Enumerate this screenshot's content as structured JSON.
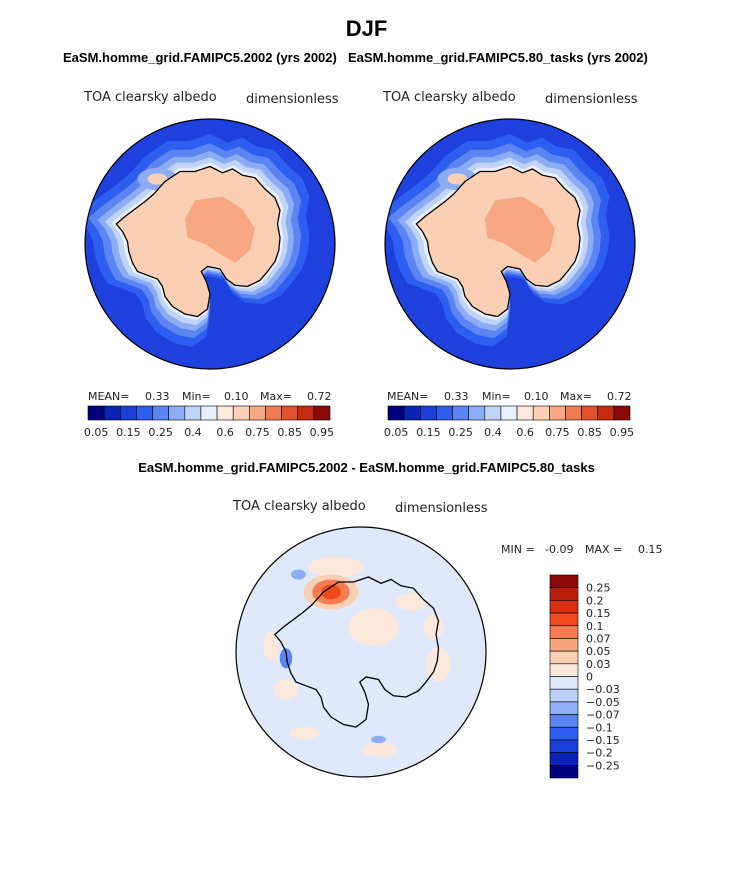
{
  "page": {
    "title": "DJF",
    "case_title": "EaSM.homme_grid.FAMIPC5.2002 (yrs 2002)",
    "control_title": "EaSM.homme_grid.FAMIPC5.80_tasks (yrs 2002)",
    "diff_title": "EaSM.homme_grid.FAMIPC5.2002 - EaSM.homme_grid.FAMIPC5.80_tasks"
  },
  "chart_data": [
    {
      "type": "heatmap",
      "projection": "south polar stereographic",
      "title": "EaSM.homme_grid.FAMIPC5.2002 (yrs 2002)",
      "variable": "TOA clearsky albedo",
      "units": "dimensionless",
      "stats": {
        "mean_label": "MEAN=",
        "mean": "0.33",
        "min_label": "Min=",
        "min": "0.10",
        "max_label": "Max=",
        "max": "0.72"
      },
      "colorbar": {
        "orientation": "horizontal",
        "levels": [
          0.05,
          0.1,
          0.15,
          0.2,
          0.25,
          0.3,
          0.4,
          0.5,
          0.6,
          0.7,
          0.75,
          0.8,
          0.85,
          0.9,
          0.95
        ],
        "tick_labels": [
          "0.05",
          "0.15",
          "0.25",
          "0.4",
          "0.6",
          "0.75",
          "0.85",
          "0.95"
        ],
        "colors": [
          "#00007f",
          "#0a23b4",
          "#1a3fd8",
          "#2e5ef0",
          "#5a85f2",
          "#8cacf5",
          "#c0d4f8",
          "#e8effc",
          "#fde8dc",
          "#fbcfb4",
          "#f7a882",
          "#f07b53",
          "#e3502e",
          "#c52b11",
          "#8b0a05"
        ]
      }
    },
    {
      "type": "heatmap",
      "projection": "south polar stereographic",
      "title": "EaSM.homme_grid.FAMIPC5.80_tasks (yrs 2002)",
      "variable": "TOA clearsky albedo",
      "units": "dimensionless",
      "stats": {
        "mean_label": "MEAN=",
        "mean": "0.33",
        "min_label": "Min=",
        "min": "0.10",
        "max_label": "Max=",
        "max": "0.72"
      },
      "colorbar": {
        "orientation": "horizontal",
        "levels": [
          0.05,
          0.1,
          0.15,
          0.2,
          0.25,
          0.3,
          0.4,
          0.5,
          0.6,
          0.7,
          0.75,
          0.8,
          0.85,
          0.9,
          0.95
        ],
        "tick_labels": [
          "0.05",
          "0.15",
          "0.25",
          "0.4",
          "0.6",
          "0.75",
          "0.85",
          "0.95"
        ],
        "colors": [
          "#00007f",
          "#0a23b4",
          "#1a3fd8",
          "#2e5ef0",
          "#5a85f2",
          "#8cacf5",
          "#c0d4f8",
          "#e8effc",
          "#fde8dc",
          "#fbcfb4",
          "#f7a882",
          "#f07b53",
          "#e3502e",
          "#c52b11",
          "#8b0a05"
        ]
      }
    },
    {
      "type": "heatmap",
      "projection": "south polar stereographic",
      "title": "EaSM.homme_grid.FAMIPC5.2002 - EaSM.homme_grid.FAMIPC5.80_tasks",
      "variable": "TOA clearsky albedo",
      "units": "dimensionless",
      "stats": {
        "min_label": "MIN =",
        "min": "-0.09",
        "max_label": "MAX =",
        "max": "0.15"
      },
      "colorbar": {
        "orientation": "vertical",
        "tick_labels": [
          "0.25",
          "0.2",
          "0.15",
          "0.1",
          "0.07",
          "0.05",
          "0.03",
          "0",
          "−0.03",
          "−0.05",
          "−0.07",
          "−0.1",
          "−0.15",
          "−0.2",
          "−0.25"
        ],
        "colors": [
          "#8b0a05",
          "#b81d0c",
          "#d83010",
          "#f04a1c",
          "#f47c50",
          "#f8a57f",
          "#fbcfb3",
          "#fde9dc",
          "#dfe9fb",
          "#b9cff8",
          "#8eaef5",
          "#5b86f1",
          "#2f5ff0",
          "#1a3fd8",
          "#0a23b4",
          "#00007f"
        ]
      }
    }
  ]
}
